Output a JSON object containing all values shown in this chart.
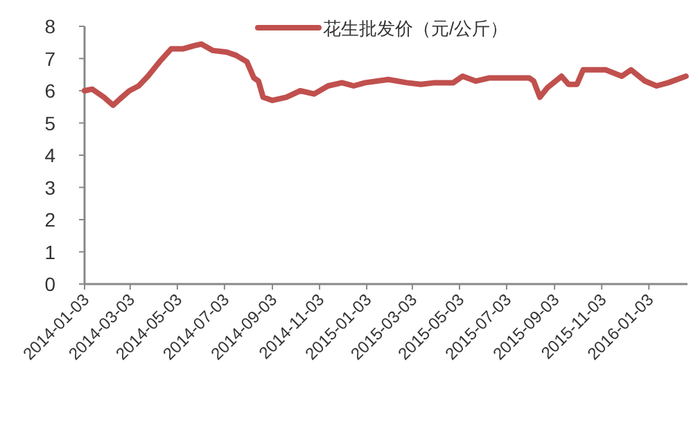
{
  "chart_data": {
    "type": "line",
    "x": [
      "2014-01-03",
      "2014-01-13",
      "2014-01-28",
      "2014-02-09",
      "2014-02-18",
      "2014-03-02",
      "2014-03-14",
      "2014-03-26",
      "2014-04-10",
      "2014-04-25",
      "2014-05-10",
      "2014-05-25",
      "2014-06-03",
      "2014-06-18",
      "2014-07-06",
      "2014-07-18",
      "2014-08-01",
      "2014-08-10",
      "2014-08-16",
      "2014-08-22",
      "2014-09-03",
      "2014-09-21",
      "2014-10-09",
      "2014-10-27",
      "2014-11-14",
      "2014-12-02",
      "2014-12-17",
      "2015-01-01",
      "2015-01-31",
      "2015-02-24",
      "2015-03-14",
      "2015-04-01",
      "2015-04-25",
      "2015-05-07",
      "2015-05-24",
      "2015-06-11",
      "2015-07-05",
      "2015-08-01",
      "2015-08-07",
      "2015-08-15",
      "2015-08-25",
      "2015-09-12",
      "2015-09-21",
      "2015-10-02",
      "2015-10-10",
      "2015-11-08",
      "2015-11-29",
      "2015-12-11",
      "2015-12-29",
      "2016-01-13",
      "2016-01-28",
      "2016-02-20"
    ],
    "series": [
      {
        "name": "花生批发价（元/公斤）",
        "color": "#c0504d",
        "values": [
          6.0,
          6.05,
          5.8,
          5.55,
          5.75,
          6.0,
          6.15,
          6.45,
          6.9,
          7.3,
          7.3,
          7.4,
          7.45,
          7.25,
          7.2,
          7.1,
          6.9,
          6.4,
          6.3,
          5.8,
          5.7,
          5.8,
          6.0,
          5.9,
          6.15,
          6.25,
          6.15,
          6.25,
          6.35,
          6.25,
          6.2,
          6.25,
          6.25,
          6.45,
          6.3,
          6.4,
          6.4,
          6.4,
          6.3,
          5.8,
          6.1,
          6.45,
          6.2,
          6.2,
          6.65,
          6.65,
          6.45,
          6.65,
          6.3,
          6.15,
          6.25,
          6.45
        ]
      }
    ],
    "xlim": [
      "2014-01-03",
      "2016-02-22"
    ],
    "xticks": [
      "2014-01-03",
      "2014-03-03",
      "2014-05-03",
      "2014-07-03",
      "2014-09-03",
      "2014-11-03",
      "2015-01-03",
      "2015-03-03",
      "2015-05-03",
      "2015-07-03",
      "2015-09-03",
      "2015-11-03",
      "2016-01-03"
    ],
    "ylim": [
      0,
      8
    ],
    "yticks": [
      0,
      1,
      2,
      3,
      4,
      5,
      6,
      7,
      8
    ],
    "grid": false,
    "legend": "top",
    "marker": "none",
    "line_style": "solid"
  }
}
